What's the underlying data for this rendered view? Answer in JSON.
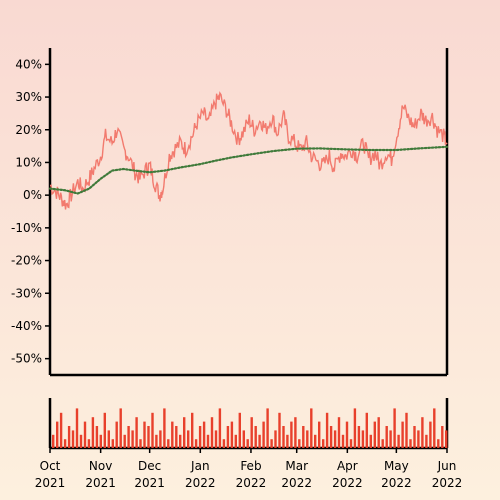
{
  "chart_data": {
    "type": "line",
    "title": "",
    "xlabel": "",
    "ylabel": "",
    "x_ticks": [
      {
        "month": "Oct",
        "year": "2021",
        "date": "2021-10-01"
      },
      {
        "month": "Nov",
        "year": "2021",
        "date": "2021-11-01"
      },
      {
        "month": "Dec",
        "year": "2021",
        "date": "2021-12-01"
      },
      {
        "month": "Jan",
        "year": "2022",
        "date": "2022-01-01"
      },
      {
        "month": "Feb",
        "year": "2022",
        "date": "2022-02-01"
      },
      {
        "month": "Mar",
        "year": "2022",
        "date": "2022-03-01"
      },
      {
        "month": "Apr",
        "year": "2022",
        "date": "2022-04-01"
      },
      {
        "month": "May",
        "year": "2022",
        "date": "2022-05-01"
      },
      {
        "month": "Jun",
        "year": "2022",
        "date": "2022-06-01"
      }
    ],
    "y_ticks": [
      "40%",
      "30%",
      "20%",
      "10%",
      "0%",
      "-10%",
      "-20%",
      "-30%",
      "-40%",
      "-50%"
    ],
    "y_tick_values": [
      40,
      30,
      20,
      10,
      0,
      -10,
      -20,
      -30,
      -40,
      -50
    ],
    "ylim": [
      -55,
      45
    ],
    "xlim": [
      "2021-10-01",
      "2022-06-01"
    ],
    "grid": false,
    "colors": {
      "series": "#f27a6e",
      "average": "#3f7a3a",
      "volume": "#e8402c"
    },
    "series": [
      {
        "values": [
          [
            "2021-10-01",
            3
          ],
          [
            "2021-10-05",
            1
          ],
          [
            "2021-10-08",
            -1
          ],
          [
            "2021-10-11",
            -3
          ],
          [
            "2021-10-14",
            0
          ],
          [
            "2021-10-18",
            4
          ],
          [
            "2021-10-21",
            2
          ],
          [
            "2021-10-25",
            5
          ],
          [
            "2021-10-28",
            8
          ],
          [
            "2021-11-01",
            12
          ],
          [
            "2021-11-04",
            18
          ],
          [
            "2021-11-08",
            16
          ],
          [
            "2021-11-11",
            20
          ],
          [
            "2021-11-15",
            14
          ],
          [
            "2021-11-18",
            12
          ],
          [
            "2021-11-22",
            7
          ],
          [
            "2021-11-25",
            5
          ],
          [
            "2021-11-29",
            8
          ],
          [
            "2021-12-01",
            9
          ],
          [
            "2021-12-04",
            4
          ],
          [
            "2021-12-07",
            0
          ],
          [
            "2021-12-09",
            2
          ],
          [
            "2021-12-13",
            12
          ],
          [
            "2021-12-16",
            14
          ],
          [
            "2021-12-20",
            16
          ],
          [
            "2021-12-23",
            14
          ],
          [
            "2021-12-27",
            18
          ],
          [
            "2021-12-30",
            22
          ],
          [
            "2022-01-03",
            25
          ],
          [
            "2022-01-06",
            22
          ],
          [
            "2022-01-10",
            28
          ],
          [
            "2022-01-13",
            30
          ],
          [
            "2022-01-17",
            26
          ],
          [
            "2022-01-20",
            22
          ],
          [
            "2022-01-24",
            17
          ],
          [
            "2022-01-27",
            19
          ],
          [
            "2022-01-31",
            23
          ],
          [
            "2022-02-03",
            20
          ],
          [
            "2022-02-07",
            23
          ],
          [
            "2022-02-10",
            20
          ],
          [
            "2022-02-14",
            24
          ],
          [
            "2022-02-17",
            19
          ],
          [
            "2022-02-21",
            24
          ],
          [
            "2022-02-24",
            18
          ],
          [
            "2022-02-28",
            16
          ],
          [
            "2022-03-03",
            14
          ],
          [
            "2022-03-07",
            16
          ],
          [
            "2022-03-10",
            12
          ],
          [
            "2022-03-14",
            10
          ],
          [
            "2022-03-17",
            9
          ],
          [
            "2022-03-21",
            12
          ],
          [
            "2022-03-24",
            8
          ],
          [
            "2022-03-28",
            13
          ],
          [
            "2022-03-31",
            12
          ],
          [
            "2022-04-04",
            14
          ],
          [
            "2022-04-07",
            12
          ],
          [
            "2022-04-11",
            16
          ],
          [
            "2022-04-14",
            11
          ],
          [
            "2022-04-18",
            13
          ],
          [
            "2022-04-21",
            9
          ],
          [
            "2022-04-25",
            13
          ],
          [
            "2022-04-28",
            11
          ],
          [
            "2022-05-02",
            20
          ],
          [
            "2022-05-05",
            27
          ],
          [
            "2022-05-09",
            23
          ],
          [
            "2022-05-12",
            21
          ],
          [
            "2022-05-16",
            25
          ],
          [
            "2022-05-19",
            23
          ],
          [
            "2022-05-23",
            24
          ],
          [
            "2022-05-26",
            20
          ],
          [
            "2022-05-30",
            18
          ],
          [
            "2022-06-01",
            16
          ]
        ]
      },
      {
        "values": [
          [
            "2021-10-01",
            2
          ],
          [
            "2021-10-10",
            1.5
          ],
          [
            "2021-10-18",
            0.5
          ],
          [
            "2021-10-25",
            2
          ],
          [
            "2021-11-01",
            5
          ],
          [
            "2021-11-08",
            7.5
          ],
          [
            "2021-11-15",
            8
          ],
          [
            "2021-11-22",
            7.5
          ],
          [
            "2021-12-01",
            7
          ],
          [
            "2021-12-10",
            7.5
          ],
          [
            "2021-12-20",
            8.5
          ],
          [
            "2022-01-01",
            9.5
          ],
          [
            "2022-01-10",
            10.5
          ],
          [
            "2022-01-20",
            11.5
          ],
          [
            "2022-02-01",
            12.5
          ],
          [
            "2022-02-15",
            13.5
          ],
          [
            "2022-03-01",
            14.2
          ],
          [
            "2022-03-15",
            14.3
          ],
          [
            "2022-04-01",
            14
          ],
          [
            "2022-04-15",
            13.8
          ],
          [
            "2022-05-01",
            13.8
          ],
          [
            "2022-05-15",
            14.3
          ],
          [
            "2022-06-01",
            14.8
          ]
        ]
      }
    ],
    "volume": {
      "ylim": [
        0,
        1
      ],
      "values": [
        0.3,
        0.6,
        0.8,
        0.2,
        0.5,
        0.4,
        0.9,
        0.3,
        0.6,
        0.2,
        0.7,
        0.5,
        0.3,
        0.8,
        0.4,
        0.2,
        0.6,
        0.9,
        0.3,
        0.5,
        0.4,
        0.7,
        0.2,
        0.6,
        0.5,
        0.8,
        0.3,
        0.4,
        0.9,
        0.2,
        0.6,
        0.5,
        0.3,
        0.7,
        0.4,
        0.8,
        0.2,
        0.5,
        0.6,
        0.3,
        0.7,
        0.4,
        0.9,
        0.2,
        0.5,
        0.6,
        0.3,
        0.8,
        0.4,
        0.2,
        0.7,
        0.5,
        0.3,
        0.6,
        0.9,
        0.2,
        0.4,
        0.8,
        0.5,
        0.3,
        0.6,
        0.7,
        0.2,
        0.5,
        0.4,
        0.9,
        0.3,
        0.6,
        0.2,
        0.8,
        0.5,
        0.4,
        0.7,
        0.3,
        0.6,
        0.2,
        0.9,
        0.5,
        0.4,
        0.8,
        0.3,
        0.6,
        0.7,
        0.2,
        0.5,
        0.4,
        0.9,
        0.3,
        0.6,
        0.8,
        0.2,
        0.5,
        0.4,
        0.7,
        0.3,
        0.6,
        0.9,
        0.2,
        0.5,
        0.4
      ]
    }
  }
}
